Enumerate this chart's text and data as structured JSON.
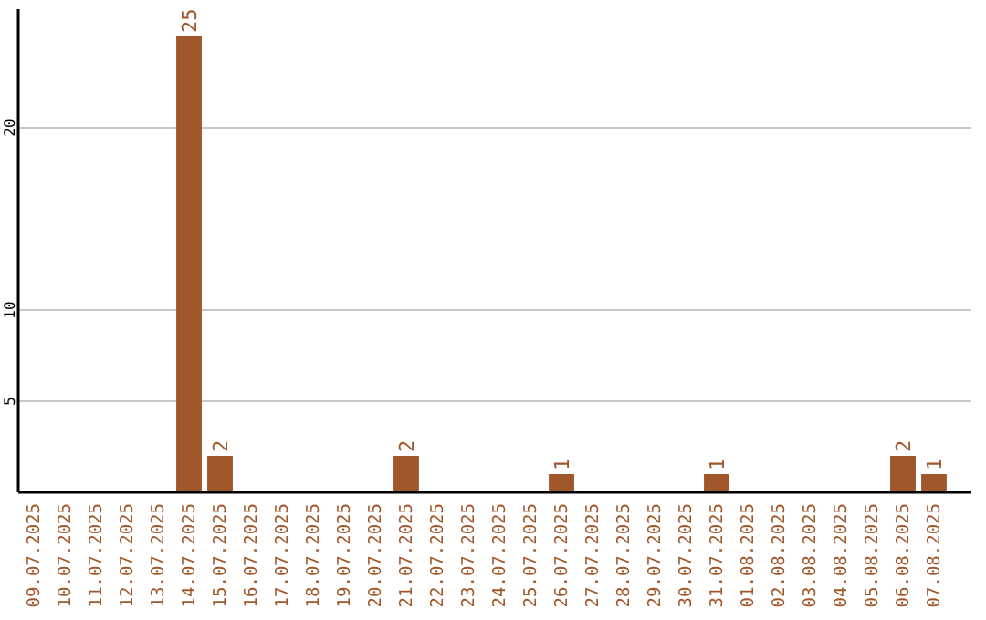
{
  "chart_data": {
    "type": "bar",
    "categories": [
      "09.07.2025",
      "10.07.2025",
      "11.07.2025",
      "12.07.2025",
      "13.07.2025",
      "14.07.2025",
      "15.07.2025",
      "16.07.2025",
      "17.07.2025",
      "18.07.2025",
      "19.07.2025",
      "20.07.2025",
      "21.07.2025",
      "22.07.2025",
      "23.07.2025",
      "24.07.2025",
      "25.07.2025",
      "26.07.2025",
      "27.07.2025",
      "28.07.2025",
      "29.07.2025",
      "30.07.2025",
      "31.07.2025",
      "01.08.2025",
      "02.08.2025",
      "03.08.2025",
      "04.08.2025",
      "05.08.2025",
      "06.08.2025",
      "07.08.2025"
    ],
    "values": [
      0,
      0,
      0,
      0,
      0,
      25,
      2,
      0,
      0,
      0,
      0,
      0,
      2,
      0,
      0,
      0,
      0,
      1,
      0,
      0,
      0,
      0,
      1,
      0,
      0,
      0,
      0,
      0,
      2,
      1
    ],
    "value_labels": [
      null,
      null,
      null,
      null,
      null,
      "25",
      "2",
      null,
      null,
      null,
      null,
      null,
      "2",
      null,
      null,
      null,
      null,
      "1",
      null,
      null,
      null,
      null,
      "1",
      null,
      null,
      null,
      null,
      null,
      "2",
      "1"
    ],
    "color": "#a0572a",
    "ylim": [
      0,
      25
    ],
    "yticks": [
      5,
      10,
      20
    ],
    "grid": "y"
  }
}
